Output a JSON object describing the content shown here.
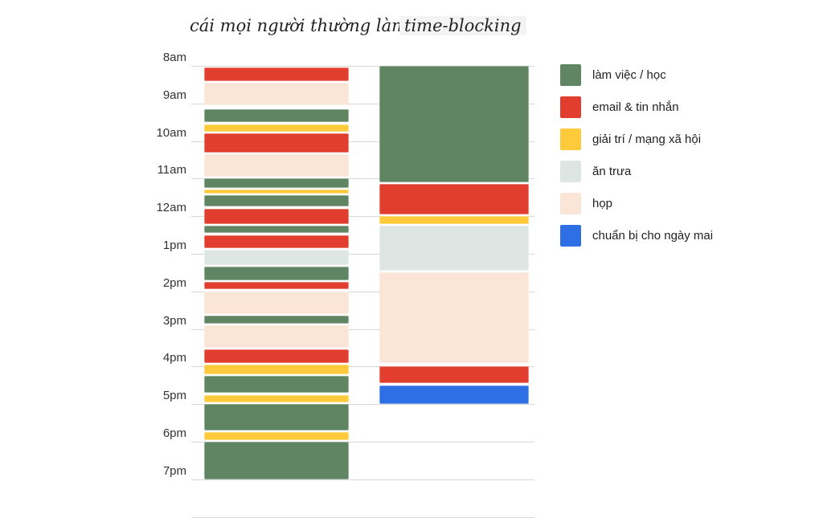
{
  "titles": {
    "left": "cái mọi người thường làm",
    "right": "time-blocking"
  },
  "time_labels": [
    "8am",
    "9am",
    "10am",
    "11am",
    "12am",
    "1pm",
    "2pm",
    "3pm",
    "4pm",
    "5pm",
    "6pm",
    "7pm"
  ],
  "colors": {
    "work": "#5f8562",
    "email": "#e23e2f",
    "social": "#fcca3a",
    "lunch": "#dde6e2",
    "meeting": "#fbe5d6",
    "prep": "#2f6fe6"
  },
  "legend": [
    {
      "key": "work",
      "label": "làm việc / học"
    },
    {
      "key": "email",
      "label": "email & tin nhắn"
    },
    {
      "key": "social",
      "label": "giải trí / mạng xã hội"
    },
    {
      "key": "lunch",
      "label": "ăn trưa"
    },
    {
      "key": "meeting",
      "label": "họp"
    },
    {
      "key": "prep",
      "label": "chuẩn bị cho ngày mai"
    }
  ],
  "schedule_typical": [
    {
      "start": 8.05,
      "end": 8.4,
      "type": "email"
    },
    {
      "start": 8.45,
      "end": 9.05,
      "type": "meeting"
    },
    {
      "start": 9.15,
      "end": 9.5,
      "type": "work"
    },
    {
      "start": 9.55,
      "end": 9.75,
      "type": "social"
    },
    {
      "start": 9.8,
      "end": 10.3,
      "type": "email"
    },
    {
      "start": 10.35,
      "end": 10.95,
      "type": "meeting"
    },
    {
      "start": 11.0,
      "end": 11.25,
      "type": "work"
    },
    {
      "start": 11.3,
      "end": 11.4,
      "type": "social"
    },
    {
      "start": 11.45,
      "end": 11.75,
      "type": "work"
    },
    {
      "start": 11.8,
      "end": 12.2,
      "type": "email"
    },
    {
      "start": 12.25,
      "end": 12.45,
      "type": "work"
    },
    {
      "start": 12.5,
      "end": 12.85,
      "type": "email"
    },
    {
      "start": 12.9,
      "end": 13.3,
      "type": "lunch"
    },
    {
      "start": 13.35,
      "end": 13.7,
      "type": "work"
    },
    {
      "start": 13.75,
      "end": 13.95,
      "type": "email"
    },
    {
      "start": 14.0,
      "end": 14.6,
      "type": "meeting"
    },
    {
      "start": 14.65,
      "end": 14.85,
      "type": "work"
    },
    {
      "start": 14.9,
      "end": 15.5,
      "type": "meeting"
    },
    {
      "start": 15.55,
      "end": 15.9,
      "type": "email"
    },
    {
      "start": 15.95,
      "end": 16.2,
      "type": "social"
    },
    {
      "start": 16.25,
      "end": 16.7,
      "type": "work"
    },
    {
      "start": 16.75,
      "end": 16.95,
      "type": "social"
    },
    {
      "start": 17.0,
      "end": 17.7,
      "type": "work"
    },
    {
      "start": 17.75,
      "end": 17.95,
      "type": "social"
    },
    {
      "start": 18.0,
      "end": 19.0,
      "type": "work"
    }
  ],
  "schedule_timeblocking": [
    {
      "start": 8.0,
      "end": 11.1,
      "type": "work"
    },
    {
      "start": 11.15,
      "end": 11.95,
      "type": "email"
    },
    {
      "start": 12.0,
      "end": 12.2,
      "type": "social"
    },
    {
      "start": 12.25,
      "end": 13.45,
      "type": "lunch"
    },
    {
      "start": 13.5,
      "end": 15.9,
      "type": "meeting"
    },
    {
      "start": 16.0,
      "end": 16.45,
      "type": "email"
    },
    {
      "start": 16.5,
      "end": 17.0,
      "type": "prep"
    }
  ]
}
